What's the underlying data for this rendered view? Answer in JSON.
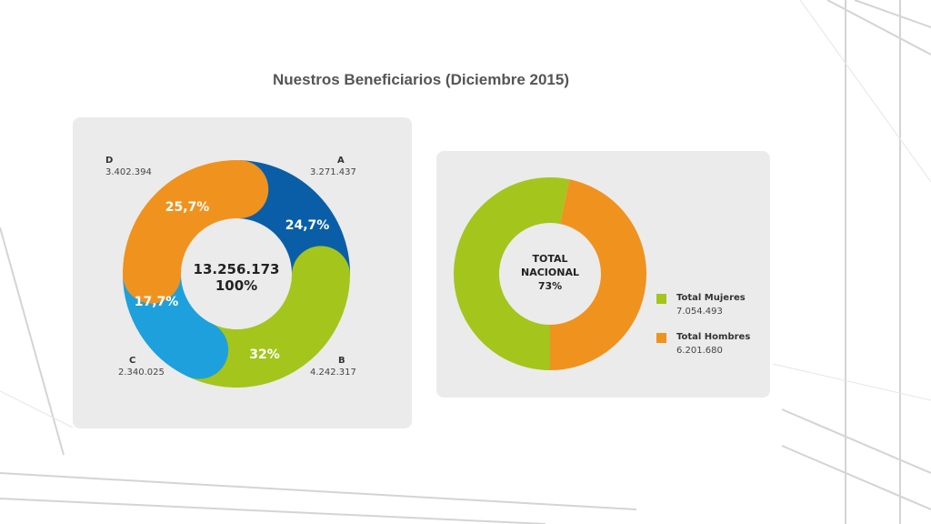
{
  "title": "Nuestros Beneficiarios (Diciembre 2015)",
  "colors": {
    "A": "#0a5ea8",
    "B": "#a4c51c",
    "C": "#1ea0dc",
    "D": "#f0921e",
    "mujeres": "#a4c51c",
    "hombres": "#f0921e"
  },
  "chart_data": [
    {
      "type": "pie",
      "title": "",
      "center_total": "13.256.173",
      "center_percent": "100%",
      "slices": [
        {
          "label": "A",
          "value_text": "3.271.437",
          "value": 3271437,
          "percent_text": "24,7%",
          "percent": 24.7
        },
        {
          "label": "B",
          "value_text": "4.242.317",
          "value": 4242317,
          "percent_text": "32%",
          "percent": 32
        },
        {
          "label": "C",
          "value_text": "2.340.025",
          "value": 2340025,
          "percent_text": "17,7%",
          "percent": 17.7
        },
        {
          "label": "D",
          "value_text": "3.402.394",
          "value": 3402394,
          "percent_text": "25,7%",
          "percent": 25.7
        }
      ]
    },
    {
      "type": "pie",
      "title": "",
      "center_line1": "TOTAL",
      "center_line2": "NACIONAL",
      "center_line3": "73%",
      "slices": [
        {
          "label": "Total Mujeres",
          "value_text": "7.054.493",
          "value": 7054493
        },
        {
          "label": "Total Hombres",
          "value_text": "6.201.680",
          "value": 6201680
        }
      ]
    }
  ]
}
